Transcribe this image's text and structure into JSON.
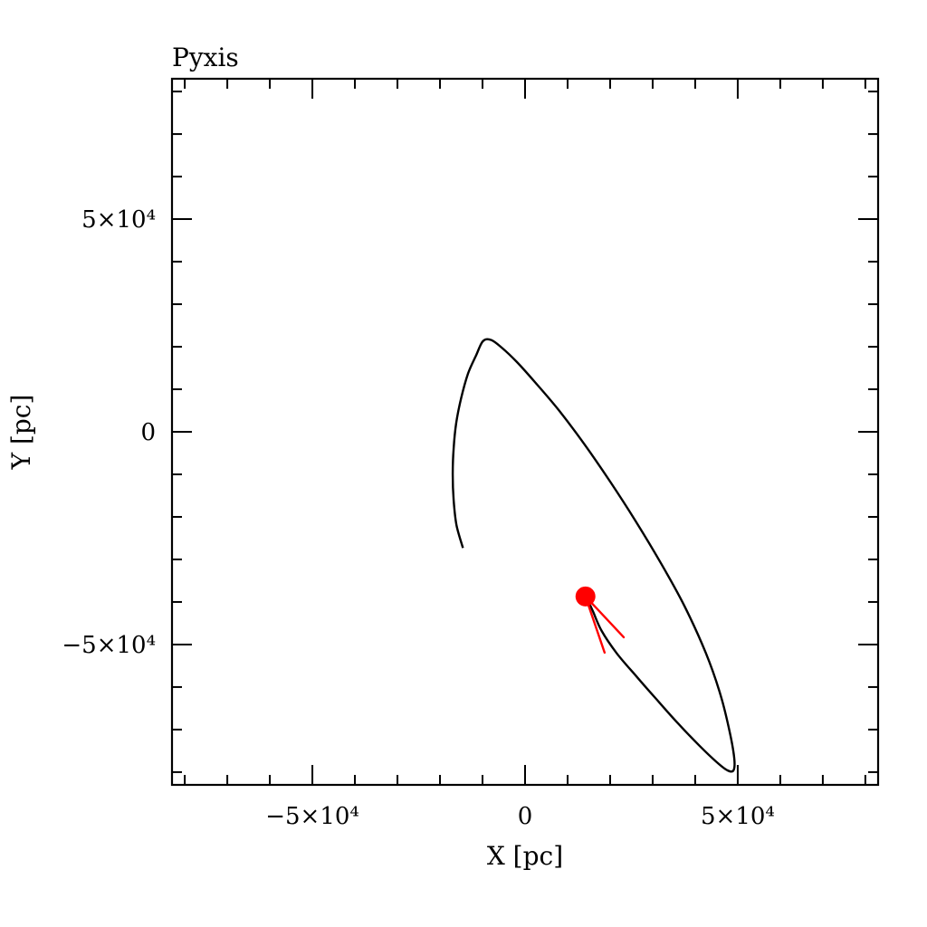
{
  "chart_data": {
    "type": "line",
    "title": "Pyxis",
    "xlabel": "X [pc]",
    "ylabel": "Y [pc]",
    "xlim": [
      -83000,
      83000
    ],
    "ylim": [
      -83000,
      83000
    ],
    "x_ticks": [
      {
        "value": -50000,
        "label": "−5×10⁴"
      },
      {
        "value": 0,
        "label": "0"
      },
      {
        "value": 50000,
        "label": "5×10⁴"
      }
    ],
    "y_ticks": [
      {
        "value": 50000,
        "label": "5×10⁴"
      },
      {
        "value": 0,
        "label": "0"
      },
      {
        "value": -50000,
        "label": "−5×10⁴"
      }
    ],
    "minor_tick_step": 10000,
    "grid": false,
    "series": [
      {
        "color": "#000000",
        "x": [
          -14600,
          -16100,
          -16800,
          -17000,
          -16800,
          -16200,
          -15000,
          -13400,
          -11500,
          -9900,
          -8000,
          -5500,
          -2000,
          2500,
          8000,
          14000,
          20000,
          26000,
          32000,
          37500,
          42500,
          46000,
          48200,
          49200,
          49000,
          47600,
          45000,
          41000,
          36000,
          31000,
          26000,
          21500,
          18000,
          16000,
          15200
        ],
        "y": [
          -27300,
          -22000,
          -16000,
          -10000,
          -4000,
          2000,
          8000,
          13700,
          18000,
          21300,
          21600,
          19800,
          16500,
          11500,
          5000,
          -3000,
          -11700,
          -21000,
          -31000,
          -41000,
          -52000,
          -62000,
          -71000,
          -77000,
          -79600,
          -79600,
          -77600,
          -73800,
          -68600,
          -63000,
          -57300,
          -52000,
          -46800,
          -42300,
          -40500
        ]
      }
    ],
    "marker": {
      "x": 14200,
      "y": -38700,
      "color": "#ff0000"
    },
    "velocity_arrow": {
      "color": "#ff0000",
      "tip": {
        "x": 14200,
        "y": -38700
      },
      "tails": [
        {
          "x": 23200,
          "y": -48300
        },
        {
          "x": 18700,
          "y": -51900
        }
      ]
    }
  }
}
